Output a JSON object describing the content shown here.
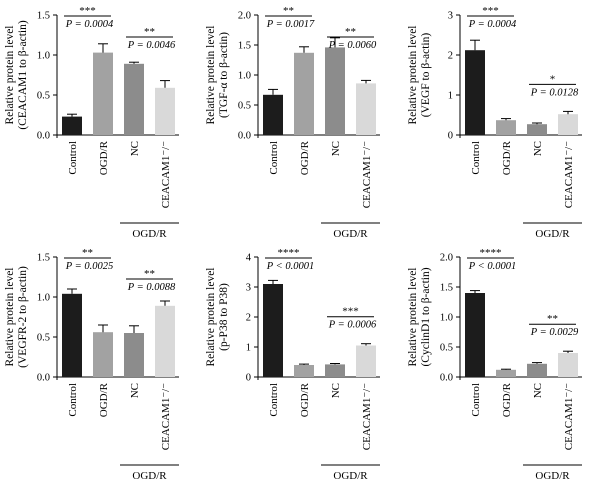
{
  "figure": {
    "colors": {
      "Control": "#1c1c1c",
      "OGD/R": "#a2a2a2",
      "NC": "#8c8c8c",
      "CEACAM1-/-": "#d9d9d9"
    },
    "group_label": "OGD/R"
  },
  "chart_data": [
    {
      "type": "bar",
      "ylabel_line1": "Relative protein level",
      "ylabel_line2": "(CEACAM1 to β-actin)",
      "categories": [
        "Control",
        "OGD/R",
        "NC",
        "CEACAM1⁻/⁻"
      ],
      "values": [
        0.23,
        1.03,
        0.89,
        0.59
      ],
      "errors": [
        0.03,
        0.11,
        0.02,
        0.09
      ],
      "ylim": [
        0,
        1.5
      ],
      "yticks": [
        "0.0",
        "0.5",
        "1.0",
        "1.5"
      ],
      "comparisons": [
        {
          "stars": "***",
          "p": "P = 0.0004"
        },
        {
          "stars": "**",
          "p": "P = 0.0046"
        }
      ]
    },
    {
      "type": "bar",
      "ylabel_line1": "Relative protein level",
      "ylabel_line2": "(TGF-α to β-actin)",
      "categories": [
        "Control",
        "OGD/R",
        "NC",
        "CEACAM1⁻/⁻"
      ],
      "values": [
        0.67,
        1.37,
        1.46,
        0.86
      ],
      "errors": [
        0.09,
        0.1,
        0.16,
        0.05
      ],
      "ylim": [
        0,
        2
      ],
      "yticks": [
        "0.0",
        "0.5",
        "1.0",
        "1.5",
        "2.0"
      ],
      "comparisons": [
        {
          "stars": "**",
          "p": "P = 0.0017"
        },
        {
          "stars": "**",
          "p": "P = 0.0060"
        }
      ]
    },
    {
      "type": "bar",
      "ylabel_line1": "Relative protein level",
      "ylabel_line2": "(VEGF to β-actin)",
      "categories": [
        "Control",
        "OGD/R",
        "NC",
        "CEACAM1⁻/⁻"
      ],
      "values": [
        2.12,
        0.37,
        0.27,
        0.52
      ],
      "errors": [
        0.25,
        0.04,
        0.03,
        0.07
      ],
      "ylim": [
        0,
        3
      ],
      "yticks": [
        "0",
        "1",
        "2",
        "3"
      ],
      "comparisons": [
        {
          "stars": "***",
          "p": "P = 0.0004"
        },
        {
          "stars": "*",
          "p": "P = 0.0128"
        }
      ]
    },
    {
      "type": "bar",
      "ylabel_line1": "Relative protein level",
      "ylabel_line2": "(VEGFR-2 to β-actin)",
      "categories": [
        "Control",
        "OGD/R",
        "NC",
        "CEACAM1⁻/⁻"
      ],
      "values": [
        1.04,
        0.56,
        0.55,
        0.89
      ],
      "errors": [
        0.06,
        0.09,
        0.09,
        0.06
      ],
      "ylim": [
        0,
        1.5
      ],
      "yticks": [
        "0.0",
        "0.5",
        "1.0",
        "1.5"
      ],
      "comparisons": [
        {
          "stars": "**",
          "p": "P = 0.0025"
        },
        {
          "stars": "**",
          "p": "P = 0.0088"
        }
      ]
    },
    {
      "type": "bar",
      "ylabel_line1": "Relative protein level",
      "ylabel_line2": "(p-P38 to P38)",
      "categories": [
        "Control",
        "OGD/R",
        "NC",
        "CEACAM1⁻/⁻"
      ],
      "values": [
        3.1,
        0.4,
        0.42,
        1.05
      ],
      "errors": [
        0.12,
        0.03,
        0.03,
        0.06
      ],
      "ylim": [
        0,
        4
      ],
      "yticks": [
        "0",
        "1",
        "2",
        "3",
        "4"
      ],
      "comparisons": [
        {
          "stars": "****",
          "p": "P < 0.0001"
        },
        {
          "stars": "***",
          "p": "P = 0.0006"
        }
      ]
    },
    {
      "type": "bar",
      "ylabel_line1": "Relative protein level",
      "ylabel_line2": "(CyclinD1 to β-actin)",
      "categories": [
        "Control",
        "OGD/R",
        "NC",
        "CEACAM1⁻/⁻"
      ],
      "values": [
        1.4,
        0.12,
        0.22,
        0.4
      ],
      "errors": [
        0.04,
        0.01,
        0.02,
        0.03
      ],
      "ylim": [
        0,
        2
      ],
      "yticks": [
        "0.0",
        "0.5",
        "1.0",
        "1.5",
        "2.0"
      ],
      "comparisons": [
        {
          "stars": "****",
          "p": "P < 0.0001"
        },
        {
          "stars": "**",
          "p": "P = 0.0029"
        }
      ]
    }
  ]
}
